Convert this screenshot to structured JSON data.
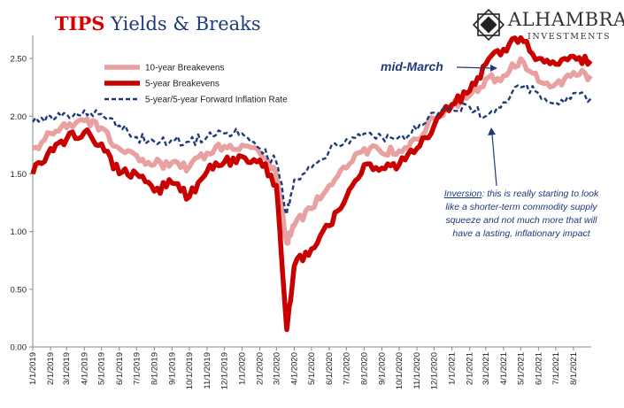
{
  "title": {
    "part1": "TIPS",
    "part2": "Yields & Breaks"
  },
  "logo": {
    "brand": "ALHAMBRA",
    "sub": "INVESTMENTS"
  },
  "annotations": {
    "mid_march": "mid-March",
    "inversion_label": "Inversion",
    "inversion_text": ": this is really starting to look like a shorter-term commodity supply squeeze and not much more that will have a lasting, inflationary impact"
  },
  "colors": {
    "ten_year": "#e8a0a0",
    "five_year": "#c80000",
    "fwd": "#1f3a7a",
    "title_red": "#d40000",
    "title_blue": "#1f3a7a"
  },
  "chart_data": {
    "type": "line",
    "title": "TIPS Yields & Breaks",
    "xlabel": "",
    "ylabel": "",
    "ylim": [
      0,
      2.7
    ],
    "yticks": [
      "0.00",
      "0.50",
      "1.00",
      "1.50",
      "2.00",
      "2.50"
    ],
    "xticks": [
      "1/1/2019",
      "2/1/2019",
      "3/1/2019",
      "4/1/2019",
      "5/1/2019",
      "6/1/2019",
      "7/1/2019",
      "8/1/2019",
      "9/1/2019",
      "10/1/2019",
      "11/1/2019",
      "12/1/2019",
      "1/1/2020",
      "2/1/2020",
      "3/1/2020",
      "4/1/2020",
      "5/1/2020",
      "6/1/2020",
      "7/1/2020",
      "8/1/2020",
      "9/1/2020",
      "10/1/2020",
      "11/1/2020",
      "12/1/2020",
      "1/1/2021",
      "2/1/2021",
      "3/1/2021",
      "4/1/2021",
      "5/1/2021",
      "6/1/2021",
      "7/1/2021",
      "8/1/2021"
    ],
    "legend_position": "top-left",
    "series": [
      {
        "name": "10-year Breakevens",
        "color": "#e8a0a0",
        "style": "solid-thick",
        "x": [
          "2019-01-01",
          "2019-02-01",
          "2019-03-01",
          "2019-04-01",
          "2019-05-01",
          "2019-06-01",
          "2019-07-01",
          "2019-08-01",
          "2019-09-01",
          "2019-10-01",
          "2019-11-01",
          "2019-12-01",
          "2020-01-01",
          "2020-02-01",
          "2020-03-01",
          "2020-03-19",
          "2020-04-01",
          "2020-05-01",
          "2020-06-01",
          "2020-07-01",
          "2020-08-01",
          "2020-09-01",
          "2020-10-01",
          "2020-11-01",
          "2020-12-01",
          "2021-01-01",
          "2021-02-01",
          "2021-03-01",
          "2021-04-01",
          "2021-05-01",
          "2021-06-01",
          "2021-07-01",
          "2021-08-01",
          "2021-08-31"
        ],
        "values": [
          1.72,
          1.85,
          1.9,
          1.96,
          1.9,
          1.72,
          1.66,
          1.58,
          1.6,
          1.56,
          1.68,
          1.74,
          1.75,
          1.68,
          1.5,
          0.9,
          1.05,
          1.2,
          1.4,
          1.55,
          1.72,
          1.68,
          1.7,
          1.8,
          1.98,
          2.08,
          2.18,
          2.32,
          2.35,
          2.5,
          2.3,
          2.28,
          2.38,
          2.35
        ]
      },
      {
        "name": "5-year Breakevens",
        "color": "#c80000",
        "style": "solid-thick",
        "x": [
          "2019-01-01",
          "2019-02-01",
          "2019-03-01",
          "2019-04-01",
          "2019-05-01",
          "2019-06-01",
          "2019-07-01",
          "2019-08-01",
          "2019-09-01",
          "2019-10-01",
          "2019-11-01",
          "2019-12-01",
          "2020-01-01",
          "2020-02-01",
          "2020-03-01",
          "2020-03-19",
          "2020-04-01",
          "2020-05-01",
          "2020-06-01",
          "2020-07-01",
          "2020-08-01",
          "2020-09-01",
          "2020-10-01",
          "2020-11-01",
          "2020-12-01",
          "2021-01-01",
          "2021-02-01",
          "2021-03-01",
          "2021-04-01",
          "2021-05-01",
          "2021-06-01",
          "2021-07-01",
          "2021-08-01",
          "2021-08-31"
        ],
        "values": [
          1.5,
          1.72,
          1.8,
          1.86,
          1.76,
          1.5,
          1.5,
          1.35,
          1.42,
          1.3,
          1.52,
          1.6,
          1.65,
          1.62,
          1.4,
          0.15,
          0.7,
          0.85,
          1.05,
          1.3,
          1.58,
          1.55,
          1.58,
          1.72,
          1.92,
          2.1,
          2.22,
          2.45,
          2.58,
          2.68,
          2.5,
          2.45,
          2.52,
          2.48
        ]
      },
      {
        "name": "5-year/5-year Forward Inflation Rate",
        "color": "#1f3a7a",
        "style": "dashed",
        "x": [
          "2019-01-01",
          "2019-02-01",
          "2019-03-01",
          "2019-04-01",
          "2019-05-01",
          "2019-06-01",
          "2019-07-01",
          "2019-08-01",
          "2019-09-01",
          "2019-10-01",
          "2019-11-01",
          "2019-12-01",
          "2020-01-01",
          "2020-02-01",
          "2020-03-01",
          "2020-03-19",
          "2020-04-01",
          "2020-05-01",
          "2020-06-01",
          "2020-07-01",
          "2020-08-01",
          "2020-09-01",
          "2020-10-01",
          "2020-11-01",
          "2020-12-01",
          "2021-01-01",
          "2021-02-01",
          "2021-03-01",
          "2021-04-01",
          "2021-05-01",
          "2021-06-01",
          "2021-07-01",
          "2021-08-01",
          "2021-08-31"
        ],
        "values": [
          1.95,
          2.0,
          2.02,
          2.05,
          2.02,
          1.92,
          1.82,
          1.78,
          1.8,
          1.78,
          1.82,
          1.85,
          1.85,
          1.72,
          1.6,
          1.15,
          1.45,
          1.55,
          1.7,
          1.8,
          1.85,
          1.82,
          1.82,
          1.88,
          2.03,
          2.05,
          2.08,
          2.0,
          2.12,
          2.25,
          2.2,
          2.12,
          2.2,
          2.15
        ]
      }
    ]
  }
}
